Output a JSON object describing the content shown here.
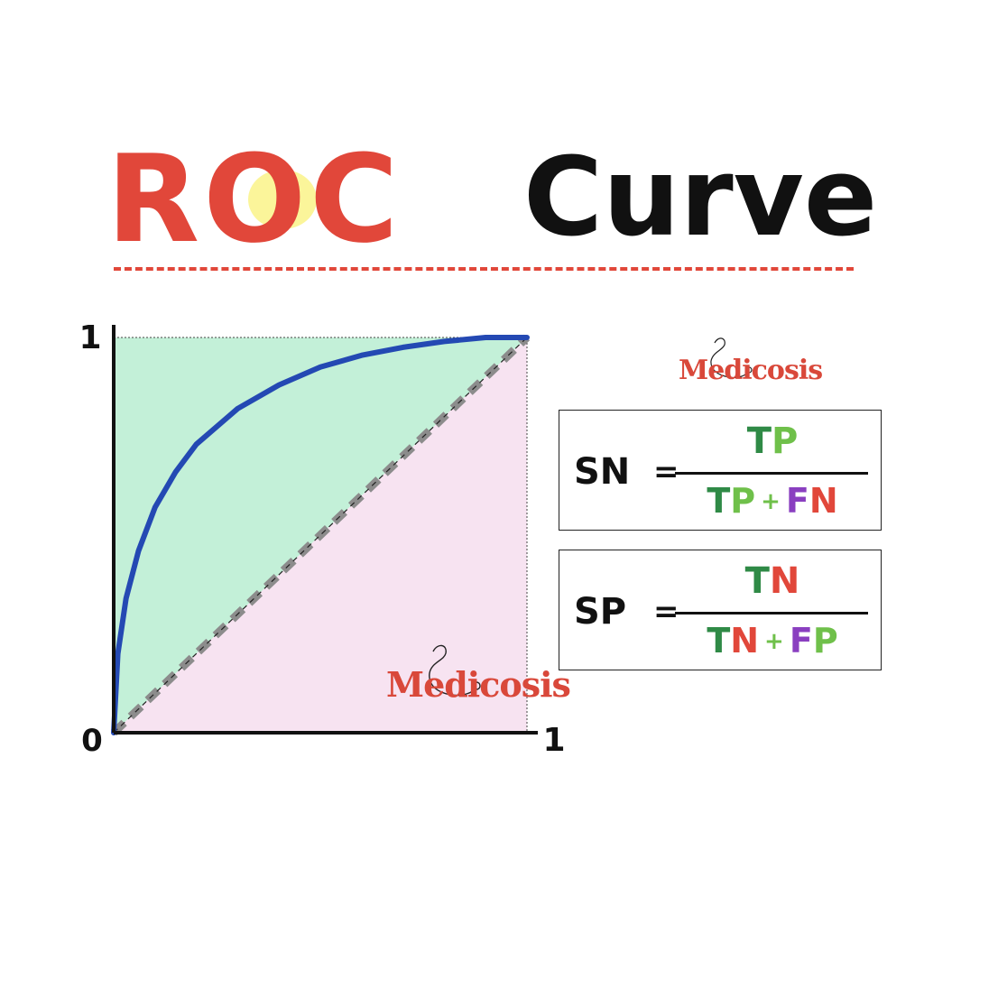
{
  "title": {
    "part1": "ROC",
    "part2": "Curve",
    "part1_color": "#e1473a",
    "part2_color": "#111111",
    "accent_fill": "#fbf59a"
  },
  "chart_data": {
    "type": "area",
    "x_ticks": [
      "0",
      "1"
    ],
    "y_ticks": [
      "1"
    ],
    "xlim": [
      0,
      1
    ],
    "ylim": [
      0,
      1
    ],
    "series": [
      {
        "line": "roc-curve",
        "color": "#2449b3",
        "style": "solid",
        "x": [
          0,
          0.01,
          0.03,
          0.06,
          0.1,
          0.15,
          0.2,
          0.3,
          0.4,
          0.5,
          0.6,
          0.7,
          0.8,
          0.9,
          1.0
        ],
        "y": [
          0,
          0.2,
          0.34,
          0.46,
          0.57,
          0.66,
          0.73,
          0.82,
          0.88,
          0.925,
          0.955,
          0.975,
          0.99,
          1.0,
          1.0
        ]
      },
      {
        "line": "chance-diagonal",
        "color": "#8c8c8c",
        "style": "dashed",
        "x": [
          0,
          1
        ],
        "y": [
          0,
          1
        ]
      }
    ],
    "region_colors": {
      "above_diagonal": "#c3f0d8",
      "below_diagonal": "#f7e3f1"
    }
  },
  "logo": {
    "text": "Medicosis",
    "color": "#d9483a"
  },
  "formulas": [
    {
      "lhs": "SN",
      "eq": "=",
      "numerator": [
        {
          "t": "T",
          "c": "dark"
        },
        {
          "t": "P",
          "c": "light"
        }
      ],
      "denominator": [
        {
          "t": "T",
          "c": "dark"
        },
        {
          "t": "P",
          "c": "light"
        },
        {
          "t": "+",
          "c": "light",
          "plus": true
        },
        {
          "t": "F",
          "c": "purple"
        },
        {
          "t": "N",
          "c": "red"
        }
      ]
    },
    {
      "lhs": "SP",
      "eq": "=",
      "numerator": [
        {
          "t": "T",
          "c": "dark"
        },
        {
          "t": "N",
          "c": "red"
        }
      ],
      "denominator": [
        {
          "t": "T",
          "c": "dark"
        },
        {
          "t": "N",
          "c": "red"
        },
        {
          "t": "+",
          "c": "light",
          "plus": true
        },
        {
          "t": "F",
          "c": "purple"
        },
        {
          "t": "P",
          "c": "light"
        }
      ]
    }
  ]
}
